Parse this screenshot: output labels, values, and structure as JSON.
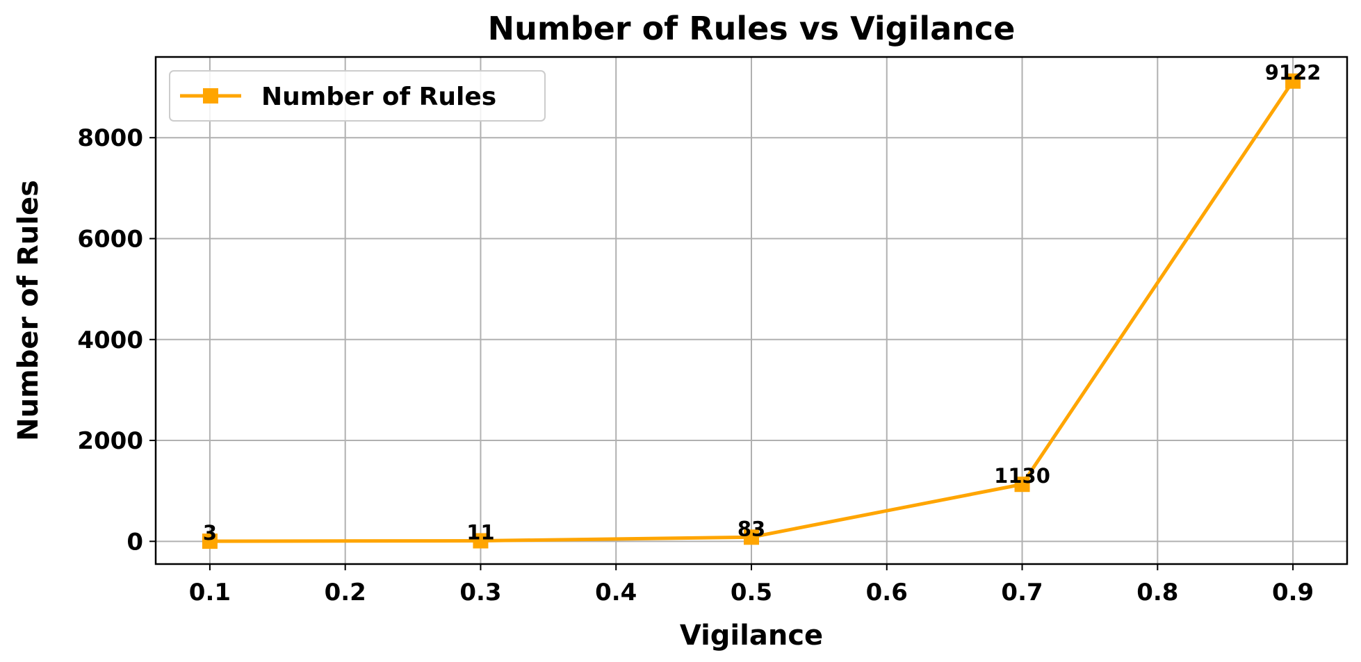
{
  "chart_data": {
    "type": "line",
    "title": "Number of Rules vs Vigilance",
    "xlabel": "Vigilance",
    "ylabel": "Number of Rules",
    "x": [
      0.1,
      0.3,
      0.5,
      0.7,
      0.9
    ],
    "series": [
      {
        "name": "Number of Rules",
        "values": [
          3,
          11,
          83,
          1130,
          9122
        ],
        "color": "#FFA500",
        "marker": "square"
      }
    ],
    "data_labels": [
      "3",
      "11",
      "83",
      "1130",
      "9122"
    ],
    "x_ticks": [
      0.1,
      0.2,
      0.3,
      0.4,
      0.5,
      0.6,
      0.7,
      0.8,
      0.9
    ],
    "x_tick_labels": [
      "0.1",
      "0.2",
      "0.3",
      "0.4",
      "0.5",
      "0.6",
      "0.7",
      "0.8",
      "0.9"
    ],
    "y_ticks": [
      0,
      2000,
      4000,
      6000,
      8000
    ],
    "y_tick_labels": [
      "0",
      "2000",
      "4000",
      "6000",
      "8000"
    ],
    "xlim": [
      0.06,
      0.94
    ],
    "ylim": [
      -450,
      9600
    ],
    "grid": true,
    "legend_position": "top-left"
  }
}
